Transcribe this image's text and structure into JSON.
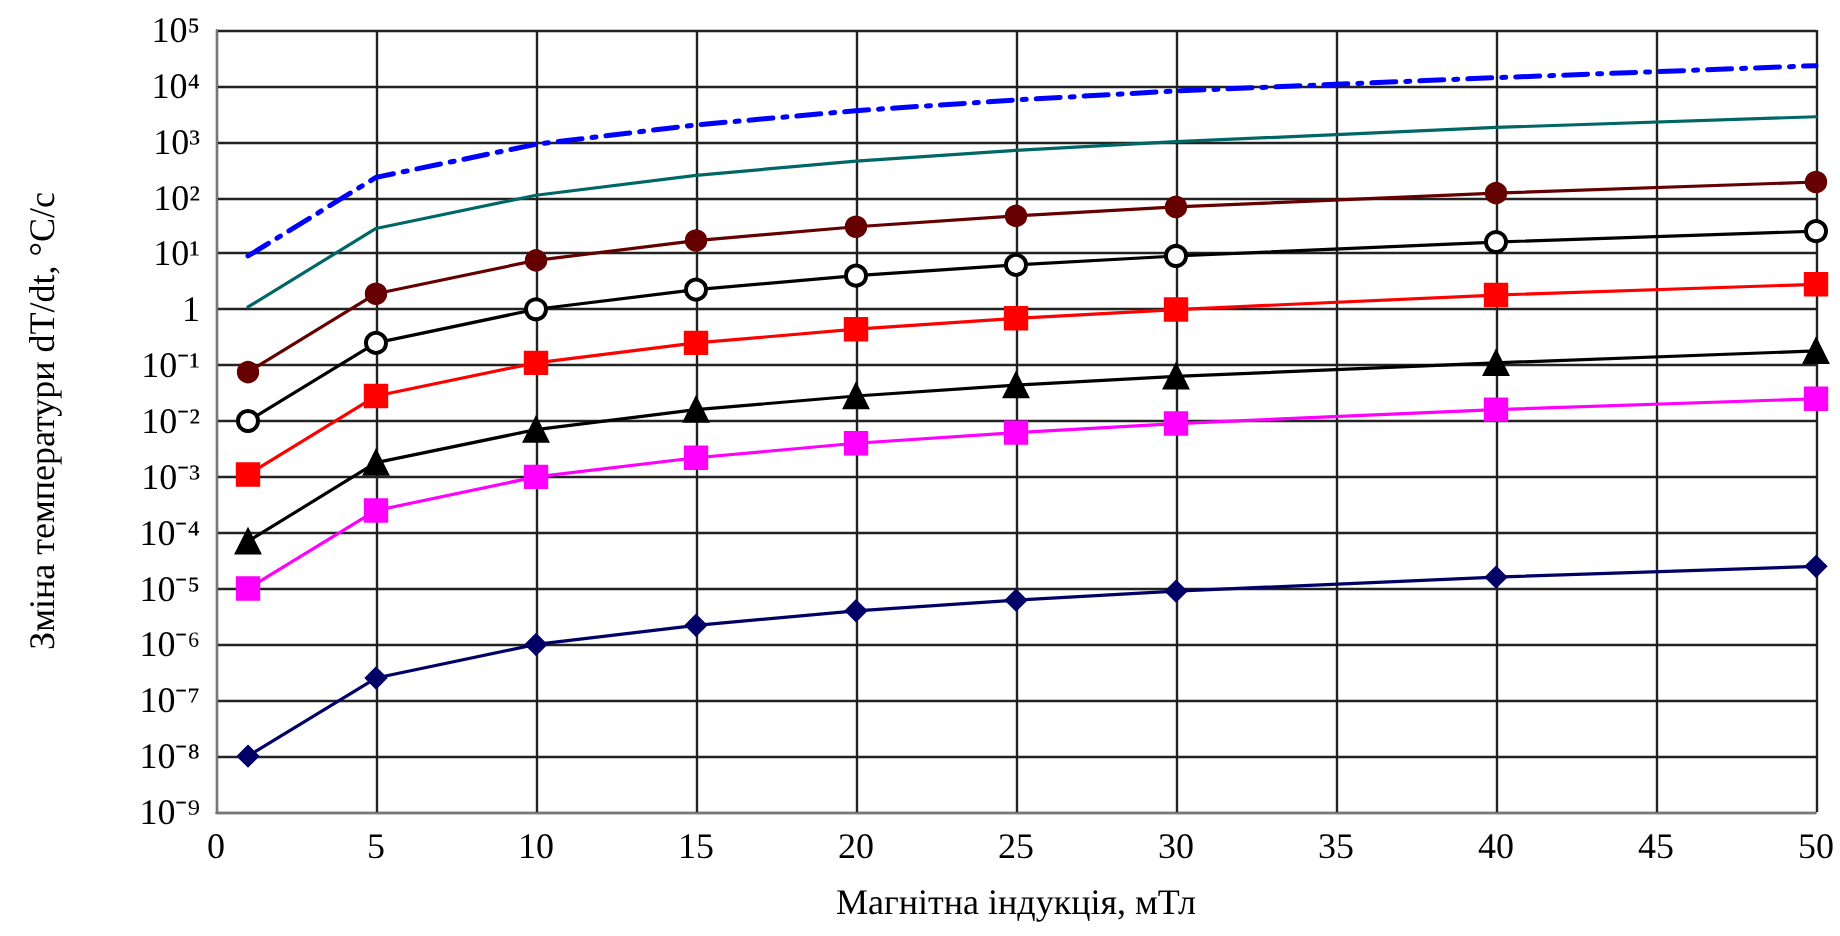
{
  "chart_data": {
    "type": "line",
    "xlabel": "Магнітна індукція, мТл",
    "ylabel": "Зміна температури dT/dt, °C/c",
    "x": [
      1,
      5,
      10,
      15,
      20,
      25,
      30,
      40,
      50
    ],
    "series": [
      {
        "color": "#0000ff",
        "marker": "none",
        "line_style": "dashdot",
        "values": [
          9,
          230,
          900,
          2000,
          3600,
          5600,
          8100,
          14000,
          23000
        ]
      },
      {
        "color": "#006666",
        "marker": "none",
        "values": [
          1.1,
          28,
          110,
          250,
          450,
          700,
          1000,
          1800,
          2800
        ]
      },
      {
        "color": "#660000",
        "marker": "circle",
        "values": [
          0.075,
          1.9,
          7.5,
          17,
          30,
          47,
          68,
          120,
          190
        ]
      },
      {
        "color": "#000000",
        "marker": "emptyCircle",
        "values": [
          0.01,
          0.25,
          1,
          2.25,
          4,
          6.25,
          9,
          16,
          25
        ]
      },
      {
        "color": "#ff0000",
        "marker": "square",
        "values": [
          0.0011,
          0.028,
          0.11,
          0.25,
          0.44,
          0.69,
          0.99,
          1.8,
          2.8
        ]
      },
      {
        "color": "#000000",
        "marker": "triangle",
        "values": [
          7e-05,
          0.0018,
          0.007,
          0.016,
          0.028,
          0.044,
          0.063,
          0.11,
          0.18
        ]
      },
      {
        "color": "#ff00ff",
        "marker": "square",
        "values": [
          1e-05,
          0.00025,
          0.001,
          0.0022,
          0.004,
          0.0062,
          0.009,
          0.016,
          0.025
        ]
      },
      {
        "color": "#000066",
        "marker": "diamond",
        "values": [
          1e-08,
          2.5e-07,
          1e-06,
          2.2e-06,
          4e-06,
          6.2e-06,
          9e-06,
          1.6e-05,
          2.5e-05
        ]
      }
    ],
    "log": "y",
    "xlim": [
      0,
      50
    ],
    "xticks": [
      0,
      5,
      10,
      15,
      20,
      25,
      30,
      35,
      40,
      45,
      50
    ],
    "ylim": [
      1e-09,
      100000
    ],
    "yticks": [
      {
        "value": 1e-09,
        "label": "10⁻⁹"
      },
      {
        "value": 1e-08,
        "label": "10⁻⁸"
      },
      {
        "value": 1e-07,
        "label": "10⁻⁷"
      },
      {
        "value": 1e-06,
        "label": "10⁻⁶"
      },
      {
        "value": 1e-05,
        "label": "10⁻⁵"
      },
      {
        "value": 0.0001,
        "label": "10⁻⁴"
      },
      {
        "value": 0.001,
        "label": "10⁻³"
      },
      {
        "value": 0.01,
        "label": "10⁻²"
      },
      {
        "value": 0.1,
        "label": "10⁻¹"
      },
      1,
      {
        "value": 10,
        "label": "10¹"
      },
      {
        "value": 100,
        "label": "10²"
      },
      {
        "value": 1000,
        "label": "10³"
      },
      {
        "value": 10000,
        "label": "10⁴"
      },
      {
        "value": 100000,
        "label": "10⁵"
      }
    ],
    "grid": true
  }
}
